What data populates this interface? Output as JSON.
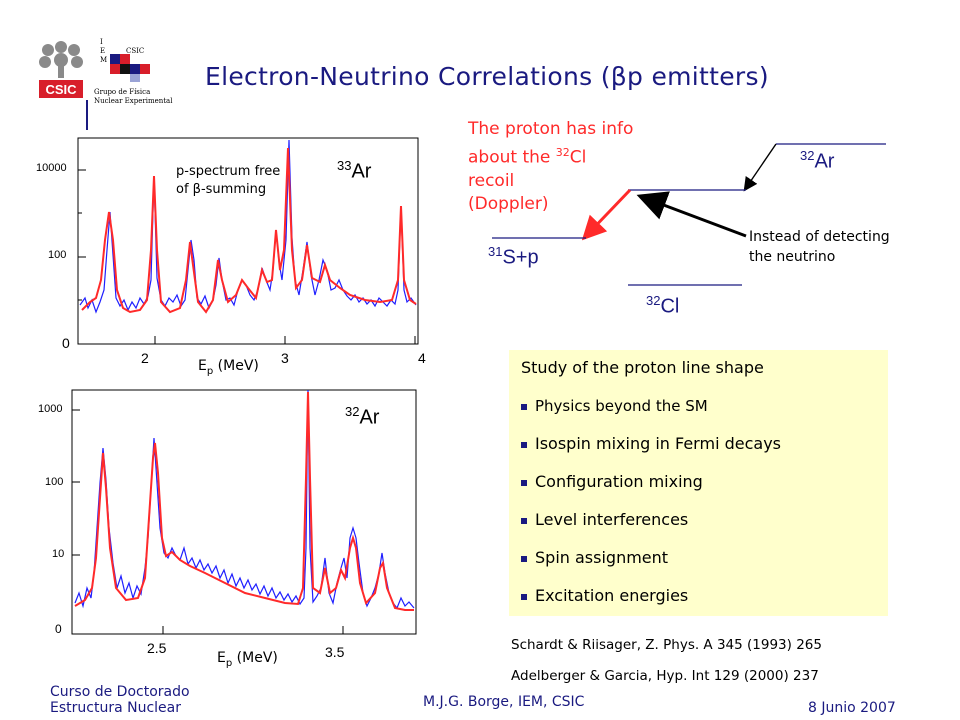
{
  "header": {
    "logo_csic_text": "CSIC",
    "logo_iem_letters": [
      "I",
      "E",
      "M"
    ],
    "logo_csic_small": "CSIC",
    "logo_group_line1": "Grupo de Física",
    "logo_group_line2": "Nuclear Experimental",
    "title": "Electron-Neutrino Correlations (βp emitters)"
  },
  "plot_top": {
    "isotope_mass": "33",
    "isotope_symbol": "Ar",
    "annotation_line1": "p-spectrum free",
    "annotation_line2": "of β-summing",
    "y_ticks": [
      "10000",
      "100",
      "0"
    ],
    "x_ticks": [
      "2",
      "3",
      "4"
    ],
    "xlabel_E": "E",
    "xlabel_sub": "p",
    "xlabel_unit": " (MeV)"
  },
  "plot_bottom": {
    "isotope_mass": "32",
    "isotope_symbol": "Ar",
    "y_ticks": [
      "1000",
      "100",
      "10",
      "0"
    ],
    "x_ticks": [
      "2.5",
      "3.5"
    ],
    "xlabel_E": "E",
    "xlabel_sub": "p",
    "xlabel_unit": " (MeV)"
  },
  "diagram": {
    "note_line1": "The proton has info",
    "note_line2_pre": "about the ",
    "note_line2_mass": "32",
    "note_line2_sym": "Cl",
    "note_line3": "recoil",
    "note_line4": "(Doppler)",
    "level_ar_mass": "32",
    "level_ar_sym": "Ar",
    "level_s_mass": "31",
    "level_s_sym": "S+p",
    "level_cl_mass": "32",
    "level_cl_sym": "Cl",
    "instead_line1": "Instead of detecting",
    "instead_line2": "the neutrino"
  },
  "study_box": {
    "heading": "Study of the proton line shape",
    "items": [
      "Physics beyond the SM",
      "Isospin mixing in Fermi decays",
      "Configuration mixing",
      "Level interferences",
      "Spin assignment",
      "Excitation energies"
    ]
  },
  "references": [
    "Schardt & Riisager, Z. Phys. A 345 (1993) 265",
    "Adelberger & Garcia,  Hyp. Int 129 (2000) 237"
  ],
  "footer": {
    "left_line1": "Curso de Doctorado",
    "left_line2": "Estructura Nuclear",
    "center": "M.J.G. Borge, IEM, CSIC",
    "right": "8 Junio 2007"
  },
  "colors": {
    "title_blue": "#1a1a80",
    "spectrum_blue": "#1f1fff",
    "fit_red": "#ff2a2a",
    "box_bg": "#ffffcc"
  }
}
